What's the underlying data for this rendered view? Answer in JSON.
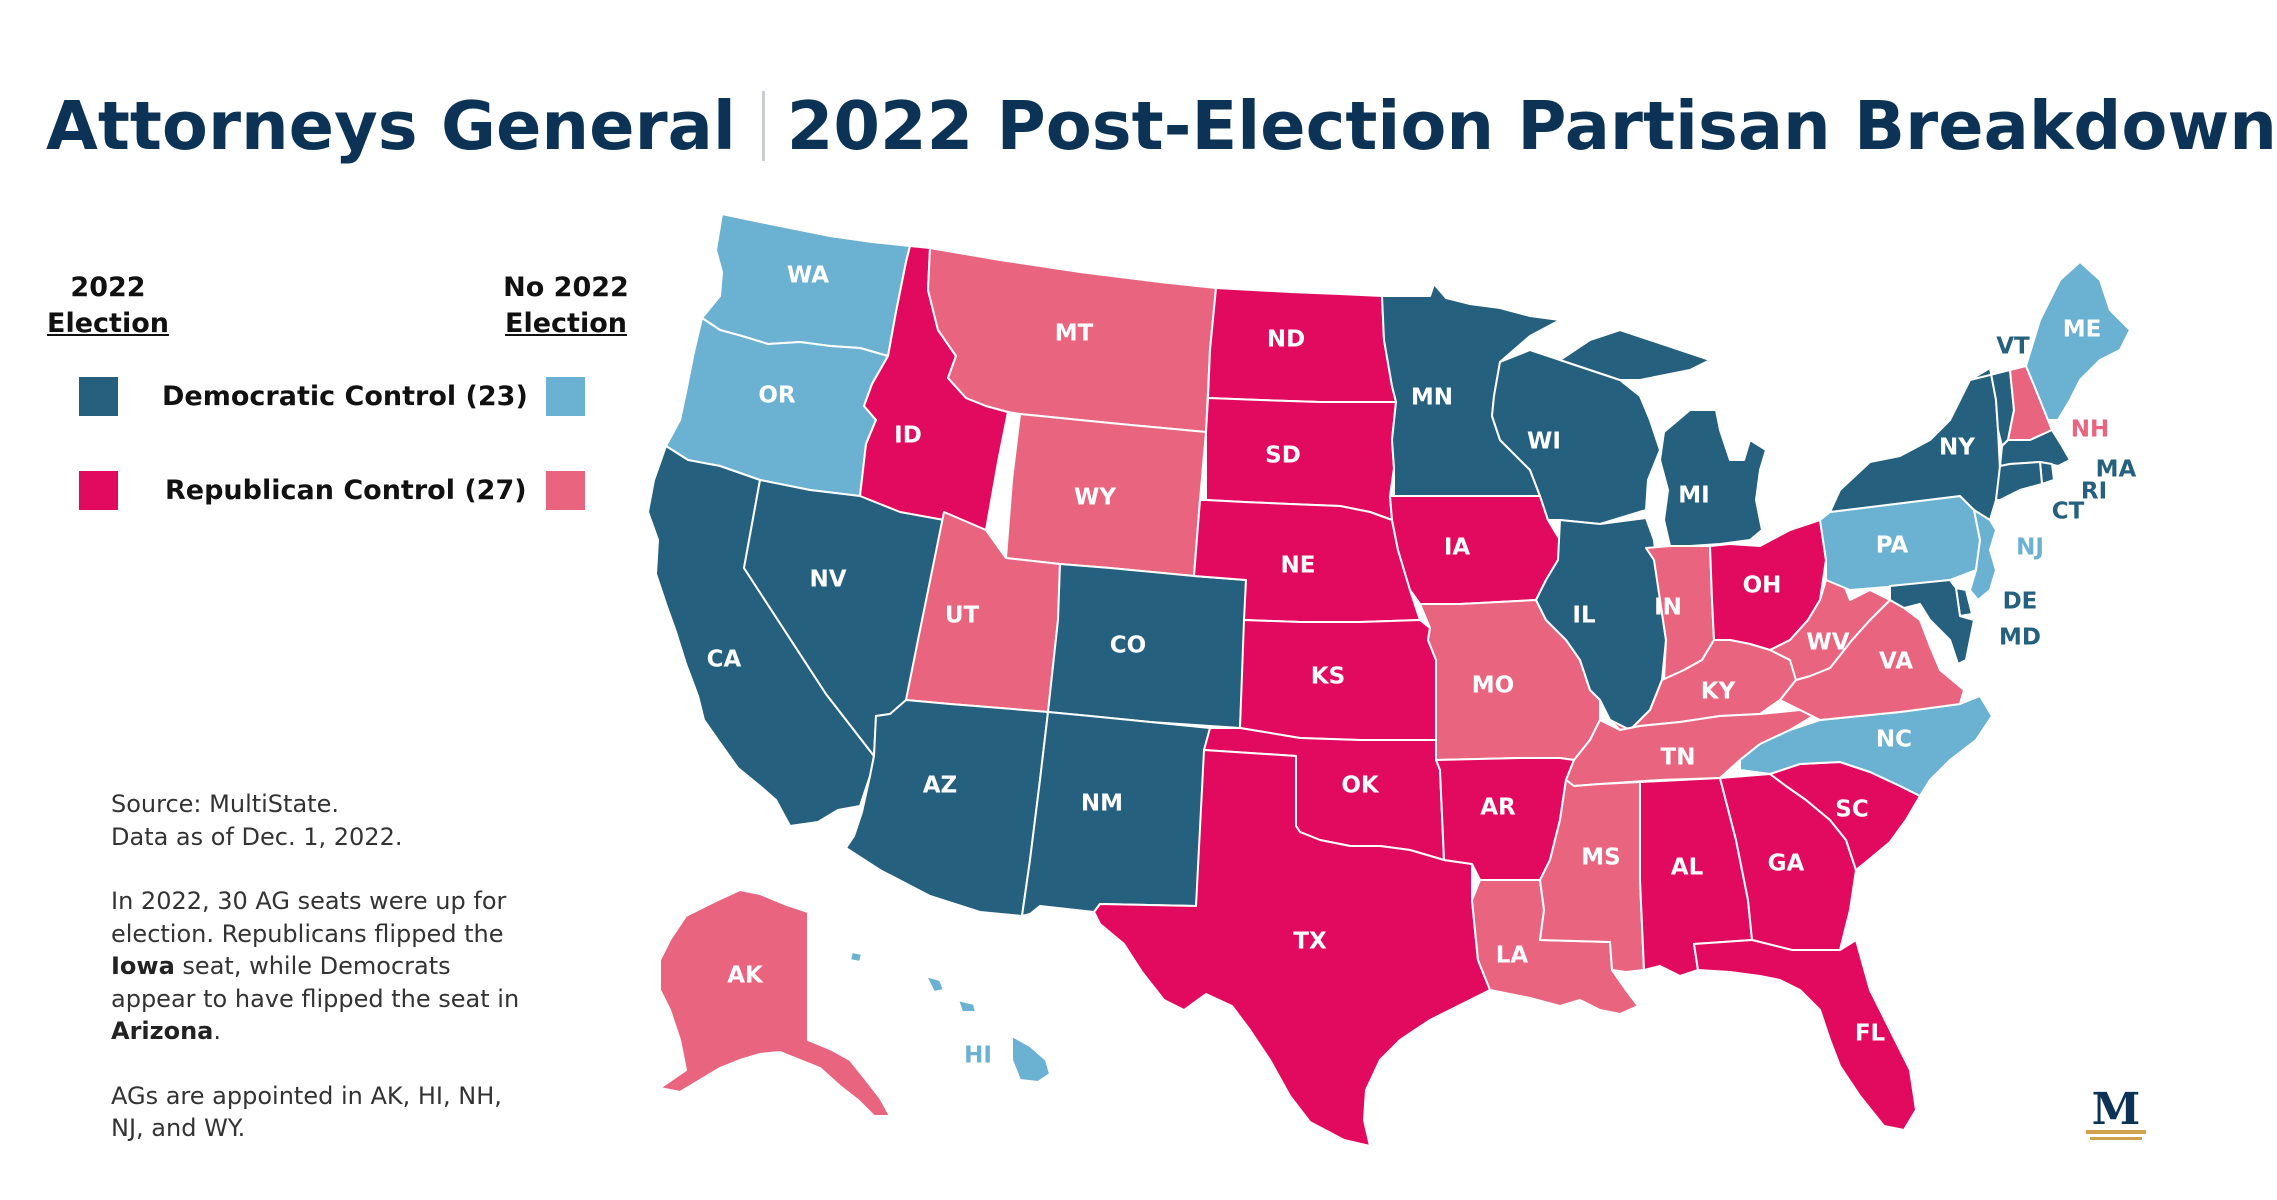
{
  "title": {
    "left": "Attorneys General",
    "right": "2022 Post-Election Partisan Breakdown"
  },
  "legend": {
    "col1": {
      "line1": "2022",
      "line2": "Election"
    },
    "col2": {
      "line1": "No 2022",
      "line2": "Election"
    },
    "dem_label": "Democratic Control (23)",
    "rep_label": "Republican Control (27)"
  },
  "colors": {
    "dem_election": "#25607f",
    "dem_no_election": "#6ab1d2",
    "rep_election": "#e20a5e",
    "rep_no_election": "#e9657f"
  },
  "notes": {
    "source_line1": "Source: MultiState.",
    "source_line2": "Data as of Dec. 1, 2022.",
    "para2_a": "In 2022, 30 AG seats were up for election. Republicans flipped the ",
    "para2_iowa": "Iowa",
    "para2_b": " seat, while Democrats appear to have flipped the seat in ",
    "para2_arizona": "Arizona",
    "para2_c": ".",
    "para3": "AGs are appointed in AK, HI, NH, NJ, and WY."
  },
  "states": {
    "WA": {
      "label": "WA",
      "status": "dem_no_election"
    },
    "OR": {
      "label": "OR",
      "status": "dem_no_election"
    },
    "CA": {
      "label": "CA",
      "status": "dem_election"
    },
    "NV": {
      "label": "NV",
      "status": "dem_election"
    },
    "ID": {
      "label": "ID",
      "status": "rep_election"
    },
    "MT": {
      "label": "MT",
      "status": "rep_no_election"
    },
    "WY": {
      "label": "WY",
      "status": "rep_no_election"
    },
    "UT": {
      "label": "UT",
      "status": "rep_no_election"
    },
    "AZ": {
      "label": "AZ",
      "status": "dem_election"
    },
    "CO": {
      "label": "CO",
      "status": "dem_election"
    },
    "NM": {
      "label": "NM",
      "status": "dem_election"
    },
    "ND": {
      "label": "ND",
      "status": "rep_election"
    },
    "SD": {
      "label": "SD",
      "status": "rep_election"
    },
    "NE": {
      "label": "NE",
      "status": "rep_election"
    },
    "KS": {
      "label": "KS",
      "status": "rep_election"
    },
    "OK": {
      "label": "OK",
      "status": "rep_election"
    },
    "TX": {
      "label": "TX",
      "status": "rep_election"
    },
    "MN": {
      "label": "MN",
      "status": "dem_election"
    },
    "IA": {
      "label": "IA",
      "status": "rep_election"
    },
    "MO": {
      "label": "MO",
      "status": "rep_no_election"
    },
    "AR": {
      "label": "AR",
      "status": "rep_election"
    },
    "LA": {
      "label": "LA",
      "status": "rep_no_election"
    },
    "WI": {
      "label": "WI",
      "status": "dem_election"
    },
    "IL": {
      "label": "IL",
      "status": "dem_election"
    },
    "MI": {
      "label": "MI",
      "status": "dem_election"
    },
    "IN": {
      "label": "IN",
      "status": "rep_no_election"
    },
    "OH": {
      "label": "OH",
      "status": "rep_election"
    },
    "KY": {
      "label": "KY",
      "status": "rep_no_election"
    },
    "TN": {
      "label": "TN",
      "status": "rep_no_election"
    },
    "MS": {
      "label": "MS",
      "status": "rep_no_election"
    },
    "AL": {
      "label": "AL",
      "status": "rep_election"
    },
    "GA": {
      "label": "GA",
      "status": "rep_election"
    },
    "FL": {
      "label": "FL",
      "status": "rep_election"
    },
    "SC": {
      "label": "SC",
      "status": "rep_election"
    },
    "NC": {
      "label": "NC",
      "status": "dem_no_election"
    },
    "VA": {
      "label": "VA",
      "status": "rep_no_election"
    },
    "WV": {
      "label": "WV",
      "status": "rep_no_election"
    },
    "PA": {
      "label": "PA",
      "status": "dem_no_election"
    },
    "NY": {
      "label": "NY",
      "status": "dem_election"
    },
    "VT": {
      "label": "VT",
      "status": "dem_election"
    },
    "NH": {
      "label": "NH",
      "status": "rep_no_election"
    },
    "ME": {
      "label": "ME",
      "status": "dem_no_election"
    },
    "MA": {
      "label": "MA",
      "status": "dem_election"
    },
    "RI": {
      "label": "RI",
      "status": "dem_election"
    },
    "CT": {
      "label": "CT",
      "status": "dem_election"
    },
    "NJ": {
      "label": "NJ",
      "status": "dem_no_election"
    },
    "DE": {
      "label": "DE",
      "status": "dem_election"
    },
    "MD": {
      "label": "MD",
      "status": "dem_election"
    },
    "AK": {
      "label": "AK",
      "status": "rep_no_election"
    },
    "HI": {
      "label": "HI",
      "status": "dem_no_election"
    }
  },
  "logo": {
    "icon": "multistate-logo",
    "letter": "M"
  }
}
